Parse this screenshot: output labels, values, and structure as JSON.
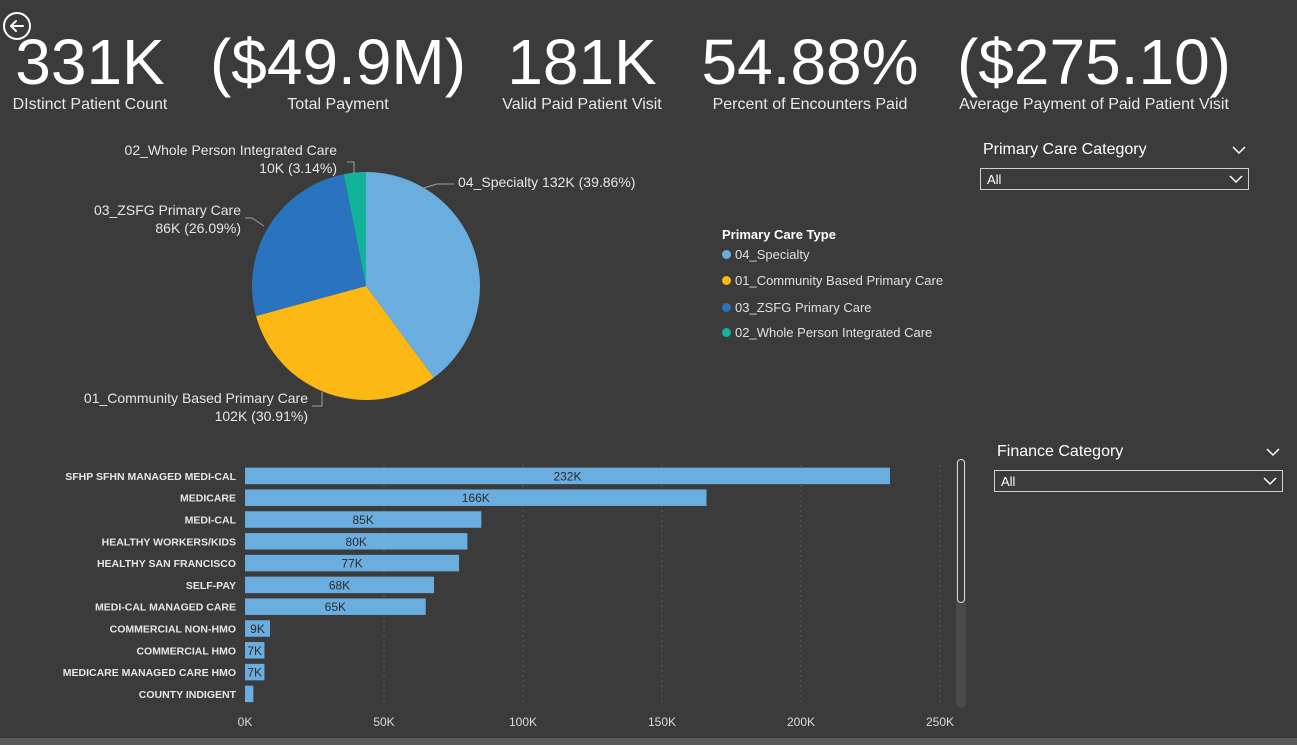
{
  "nav": {
    "back_icon": "back-arrow-icon"
  },
  "kpis": [
    {
      "value": "331K",
      "label": "DIstinct Patient Count"
    },
    {
      "value": "($49.9M)",
      "label": "Total Payment"
    },
    {
      "value": "181K",
      "label": "Valid Paid Patient Visit"
    },
    {
      "value": "54.88%",
      "label": "Percent of Encounters Paid"
    },
    {
      "value": "($275.10)",
      "label": "Average Payment of Paid Patient Visit"
    }
  ],
  "slicers": {
    "primary_care": {
      "title": "Primary Care Category",
      "value": "All"
    },
    "finance": {
      "title": "Finance Category",
      "value": "All"
    }
  },
  "chart_data": [
    {
      "type": "pie",
      "legend_title": "Primary Care Type",
      "legend_position": "right",
      "slices": [
        {
          "name": "04_Specialty",
          "value_label": "132K",
          "percent": 39.86,
          "color": "#6aaee0"
        },
        {
          "name": "01_Community Based Primary Care",
          "value_label": "102K",
          "percent": 30.91,
          "color": "#fbb714"
        },
        {
          "name": "03_ZSFG Primary Care",
          "value_label": "86K",
          "percent": 26.09,
          "color": "#2a73be"
        },
        {
          "name": "02_Whole Person Integrated Care",
          "value_label": "10K",
          "percent": 3.14,
          "color": "#12b39a"
        }
      ],
      "data_labels": [
        {
          "line1": "04_Specialty 132K (39.86%)",
          "line2": ""
        },
        {
          "line1": "01_Community Based Primary Care",
          "line2": "102K (30.91%)"
        },
        {
          "line1": "03_ZSFG Primary Care",
          "line2": "86K (26.09%)"
        },
        {
          "line1": "02_Whole Person Integrated Care",
          "line2": "10K (3.14%)"
        }
      ]
    },
    {
      "type": "bar",
      "orientation": "horizontal",
      "bar_color": "#6aaee0",
      "categories": [
        "SFHP SFHN MANAGED MEDI-CAL",
        "MEDICARE",
        "MEDI-CAL",
        "HEALTHY WORKERS/KIDS",
        "HEALTHY SAN FRANCISCO",
        "SELF-PAY",
        "MEDI-CAL MANAGED CARE",
        "COMMERCIAL NON-HMO",
        "COMMERCIAL HMO",
        "MEDICARE MANAGED CARE HMO",
        "COUNTY INDIGENT"
      ],
      "values": [
        232000,
        166000,
        85000,
        80000,
        77000,
        68000,
        65000,
        9000,
        7000,
        7000,
        3000
      ],
      "labels": [
        "232K",
        "166K",
        "85K",
        "80K",
        "77K",
        "68K",
        "65K",
        "9K",
        "7K",
        "7K",
        ""
      ],
      "xlim": [
        0,
        250000
      ],
      "xticks": [
        0,
        50000,
        100000,
        150000,
        200000,
        250000
      ],
      "xtick_labels": [
        "0K",
        "50K",
        "100K",
        "150K",
        "200K",
        "250K"
      ],
      "grid": true
    }
  ]
}
